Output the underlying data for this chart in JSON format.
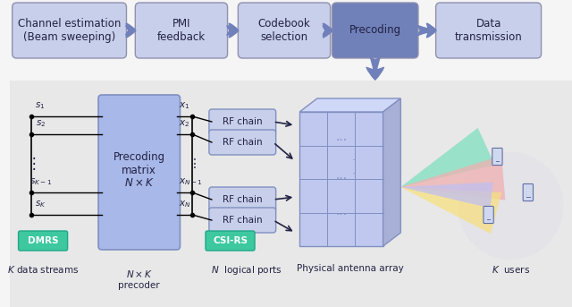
{
  "bg_color": "#f0f0f0",
  "top_bg": "#ffffff",
  "bottom_bg": "#e8e8e8",
  "box_light": "#c5cce8",
  "box_highlight": "#8899cc",
  "teal_color": "#40c8a0",
  "arrow_color": "#7788bb",
  "top_boxes": [
    "Channel estimation\n(Beam sweeping)",
    "PMI\nfeedback",
    "Codebook\nselection",
    "Precoding",
    "Data\ntransmission"
  ],
  "precoding_idx": 3,
  "bottom_labels": [
    "K data streams",
    "N×K\nprecoder",
    "N  logical ports",
    "Physical antenna array",
    "K  users"
  ]
}
